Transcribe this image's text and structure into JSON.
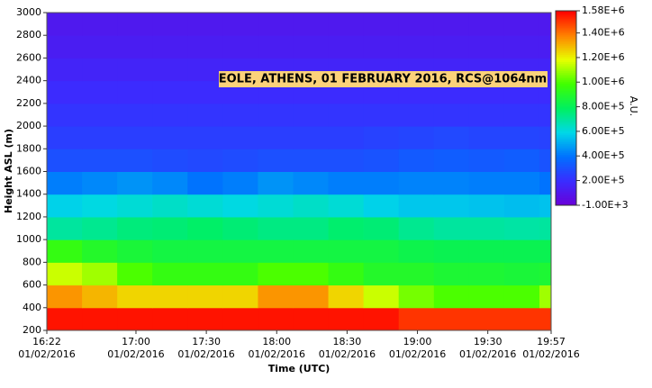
{
  "chart_data": {
    "type": "heatmap",
    "title": "EOLE, ATHENS, 01 FEBRUARY 2016, RCS@1064nm",
    "x_label": "Time (UTC)",
    "y_label": "Height ASL (m)",
    "colorbar_label": "A.U.",
    "x": [
      "16:22",
      "16:37",
      "16:52",
      "17:07",
      "17:22",
      "17:37",
      "17:52",
      "18:07",
      "18:22",
      "18:37",
      "18:52",
      "19:07",
      "19:22",
      "19:37",
      "19:52"
    ],
    "xlim": [
      "16:22",
      "19:57"
    ],
    "xticks": [
      "16:22",
      "17:00",
      "17:30",
      "18:00",
      "18:30",
      "19:00",
      "19:30",
      "19:57"
    ],
    "xtick_dates": [
      "01/02/2016",
      "01/02/2016",
      "01/02/2016",
      "01/02/2016",
      "01/02/2016",
      "01/02/2016",
      "01/02/2016",
      "01/02/2016"
    ],
    "y": [
      200,
      400,
      600,
      800,
      1000,
      1200,
      1400,
      1600,
      1800,
      2000,
      2200,
      2400,
      2600,
      2800
    ],
    "ylim": [
      200,
      3000
    ],
    "yticks": [
      200,
      400,
      600,
      800,
      1000,
      1200,
      1400,
      1600,
      1800,
      2000,
      2200,
      2400,
      2600,
      2800,
      3000
    ],
    "z": [
      [
        1550000,
        1550000,
        1550000,
        1550000,
        1550000,
        1550000,
        1550000,
        1550000,
        1550000,
        1550000,
        1500000,
        1500000,
        1500000,
        1500000,
        1500000
      ],
      [
        1350000,
        1300000,
        1250000,
        1250000,
        1250000,
        1250000,
        1350000,
        1350000,
        1250000,
        1150000,
        1050000,
        1000000,
        1000000,
        1000000,
        1100000
      ],
      [
        1150000,
        1100000,
        1000000,
        950000,
        950000,
        950000,
        1000000,
        1000000,
        950000,
        900000,
        900000,
        880000,
        880000,
        870000,
        880000
      ],
      [
        950000,
        900000,
        870000,
        850000,
        850000,
        850000,
        850000,
        850000,
        850000,
        850000,
        830000,
        820000,
        820000,
        820000,
        820000
      ],
      [
        700000,
        720000,
        750000,
        760000,
        780000,
        760000,
        740000,
        740000,
        770000,
        760000,
        720000,
        700000,
        700000,
        690000,
        700000
      ],
      [
        580000,
        600000,
        620000,
        640000,
        620000,
        600000,
        620000,
        640000,
        620000,
        580000,
        560000,
        560000,
        550000,
        540000,
        550000
      ],
      [
        420000,
        440000,
        460000,
        440000,
        400000,
        420000,
        460000,
        440000,
        420000,
        420000,
        430000,
        430000,
        420000,
        420000,
        400000
      ],
      [
        300000,
        300000,
        300000,
        290000,
        280000,
        290000,
        300000,
        300000,
        300000,
        310000,
        330000,
        340000,
        330000,
        340000,
        310000
      ],
      [
        250000,
        250000,
        250000,
        250000,
        250000,
        250000,
        250000,
        250000,
        250000,
        260000,
        270000,
        280000,
        270000,
        270000,
        260000
      ],
      [
        220000,
        220000,
        220000,
        220000,
        220000,
        220000,
        220000,
        220000,
        220000,
        220000,
        220000,
        220000,
        220000,
        220000,
        220000
      ],
      [
        190000,
        190000,
        190000,
        190000,
        190000,
        190000,
        190000,
        190000,
        190000,
        190000,
        190000,
        190000,
        190000,
        190000,
        190000
      ],
      [
        160000,
        160000,
        160000,
        160000,
        160000,
        160000,
        160000,
        160000,
        160000,
        160000,
        160000,
        160000,
        160000,
        160000,
        160000
      ],
      [
        130000,
        130000,
        130000,
        130000,
        130000,
        130000,
        130000,
        130000,
        130000,
        130000,
        130000,
        130000,
        130000,
        130000,
        130000
      ],
      [
        110000,
        110000,
        110000,
        110000,
        110000,
        110000,
        110000,
        110000,
        110000,
        110000,
        110000,
        110000,
        110000,
        110000,
        110000
      ]
    ],
    "clim": [
      -1000,
      1580000
    ],
    "cticks": [
      {
        "value": -1000,
        "label": "-1.00E+3"
      },
      {
        "value": 200000,
        "label": "2.00E+5"
      },
      {
        "value": 400000,
        "label": "4.00E+5"
      },
      {
        "value": 600000,
        "label": "6.00E+5"
      },
      {
        "value": 800000,
        "label": "8.00E+5"
      },
      {
        "value": 1000000,
        "label": "1.00E+6"
      },
      {
        "value": 1200000,
        "label": "1.20E+6"
      },
      {
        "value": 1400000,
        "label": "1.40E+6"
      },
      {
        "value": 1580000,
        "label": "1.58E+6"
      }
    ],
    "colorscale": [
      "#6a00d8",
      "#3a2cff",
      "#0070ff",
      "#00d8e8",
      "#00f060",
      "#40ff00",
      "#e8ff00",
      "#ff8000",
      "#ff0000"
    ]
  }
}
